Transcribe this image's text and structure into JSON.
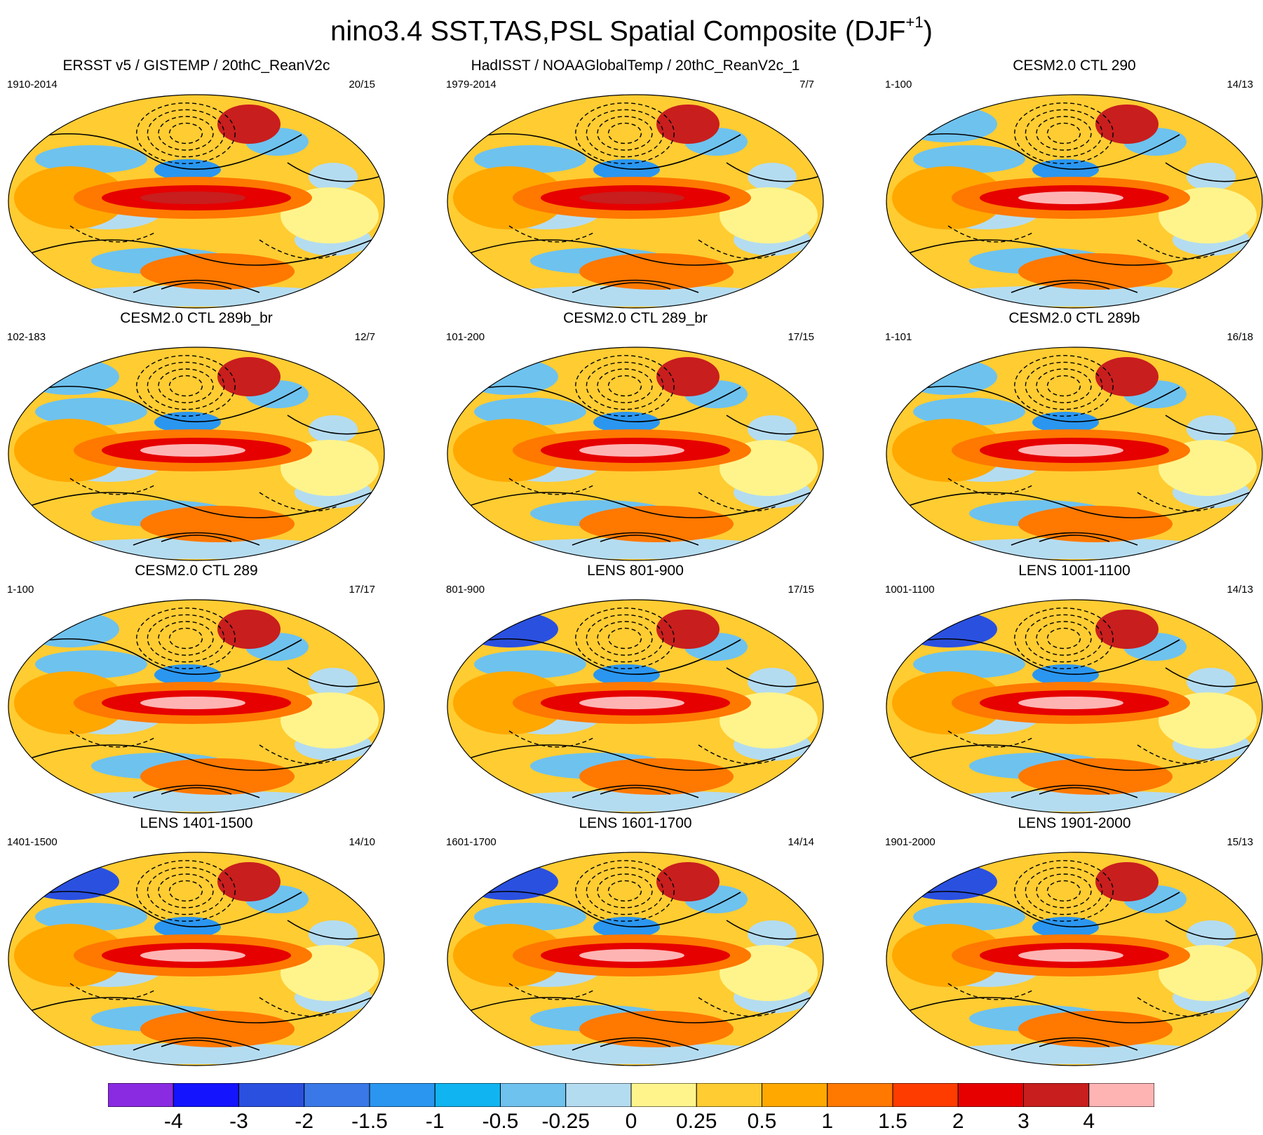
{
  "title": {
    "main": "nino3.4 SST,TAS,PSL Spatial Composite (DJF",
    "superscript": "+1",
    "close": ")"
  },
  "panels": [
    {
      "title": "ERSST v5 / GISTEMP / 20thC_ReanV2c",
      "period": "1910-2014",
      "count": "20/15"
    },
    {
      "title": "HadISST / NOAAGlobalTemp / 20thC_ReanV2c_1",
      "period": "1979-2014",
      "count": "7/7"
    },
    {
      "title": "CESM2.0 CTL 290",
      "period": "1-100",
      "count": "14/13"
    },
    {
      "title": "CESM2.0 CTL 289b_br",
      "period": "102-183",
      "count": "12/7"
    },
    {
      "title": "CESM2.0 CTL 289_br",
      "period": "101-200",
      "count": "17/15"
    },
    {
      "title": "CESM2.0 CTL 289b",
      "period": "1-101",
      "count": "16/18"
    },
    {
      "title": "CESM2.0 CTL 289",
      "period": "1-100",
      "count": "17/17"
    },
    {
      "title": "LENS 801-900",
      "period": "801-900",
      "count": "17/15"
    },
    {
      "title": "LENS 1001-1100",
      "period": "1001-1100",
      "count": "14/13"
    },
    {
      "title": "LENS 1401-1500",
      "period": "1401-1500",
      "count": "14/10"
    },
    {
      "title": "LENS 1601-1700",
      "period": "1601-1700",
      "count": "14/14"
    },
    {
      "title": "LENS 1901-2000",
      "period": "1901-2000",
      "count": "15/13"
    }
  ],
  "colorbar": {
    "colors": [
      "#8a2be2",
      "#1414ff",
      "#2a50e0",
      "#3a78e8",
      "#2a96f0",
      "#10b4f0",
      "#6ec2ee",
      "#b4dcf0",
      "#fff48c",
      "#ffcc32",
      "#ffa800",
      "#ff7800",
      "#ff3c00",
      "#e60000",
      "#c81e1e",
      "#ffb4b4"
    ],
    "labels": [
      "-4",
      "-3",
      "-2",
      "-1.5",
      "-1",
      "-0.5",
      "-0.25",
      "0",
      "0.25",
      "0.5",
      "1",
      "1.5",
      "2",
      "3",
      "4"
    ]
  }
}
